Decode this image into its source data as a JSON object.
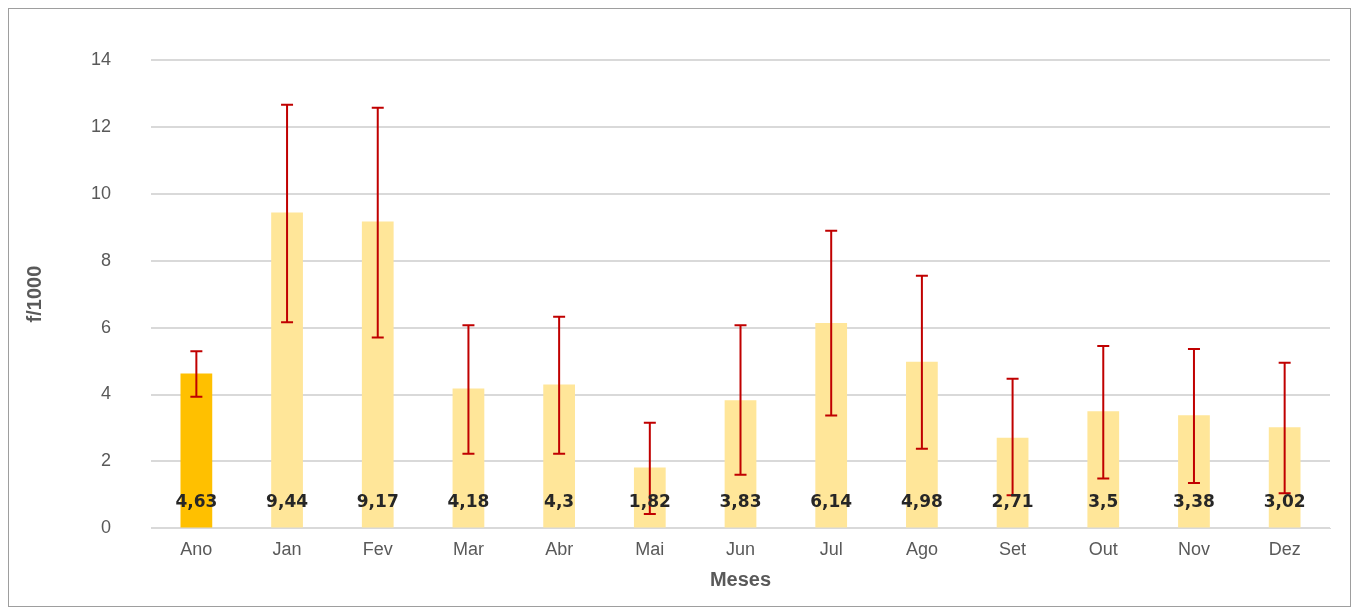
{
  "chart_data": {
    "type": "bar",
    "xlabel": "Meses",
    "ylabel": "f/1000",
    "categories": [
      "Ano",
      "Jan",
      "Fev",
      "Mar",
      "Abr",
      "Mai",
      "Jun",
      "Jul",
      "Ago",
      "Set",
      "Out",
      "Nov",
      "Dez"
    ],
    "values": [
      4.63,
      9.44,
      9.17,
      4.18,
      4.3,
      1.82,
      3.83,
      6.14,
      4.98,
      2.71,
      3.5,
      3.38,
      3.02
    ],
    "value_labels": [
      "4,63",
      "9,44",
      "9,17",
      "4,18",
      "4,3",
      "1,82",
      "3,83",
      "6,14",
      "4,98",
      "2,71",
      "3,5",
      "3,38",
      "3,02"
    ],
    "colors": [
      "#ffc000",
      "#ffe699",
      "#ffe699",
      "#ffe699",
      "#ffe699",
      "#ffe699",
      "#ffe699",
      "#ffe699",
      "#ffe699",
      "#ffe699",
      "#ffe699",
      "#ffe699",
      "#ffe699"
    ],
    "errors": [
      [
        3.93,
        5.29
      ],
      [
        6.16,
        12.66
      ],
      [
        5.7,
        12.57
      ],
      [
        2.23,
        6.07
      ],
      [
        2.23,
        6.32
      ],
      [
        0.43,
        3.16
      ],
      [
        1.6,
        6.07
      ],
      [
        3.37,
        8.89
      ],
      [
        2.38,
        7.55
      ],
      [
        0.99,
        4.47
      ],
      [
        1.49,
        5.45
      ],
      [
        1.36,
        5.36
      ],
      [
        1.05,
        4.95
      ]
    ],
    "ylim": [
      0,
      14
    ],
    "yticks": [
      0,
      2,
      4,
      6,
      8,
      10,
      12,
      14
    ],
    "grid": "y",
    "legend": false
  }
}
